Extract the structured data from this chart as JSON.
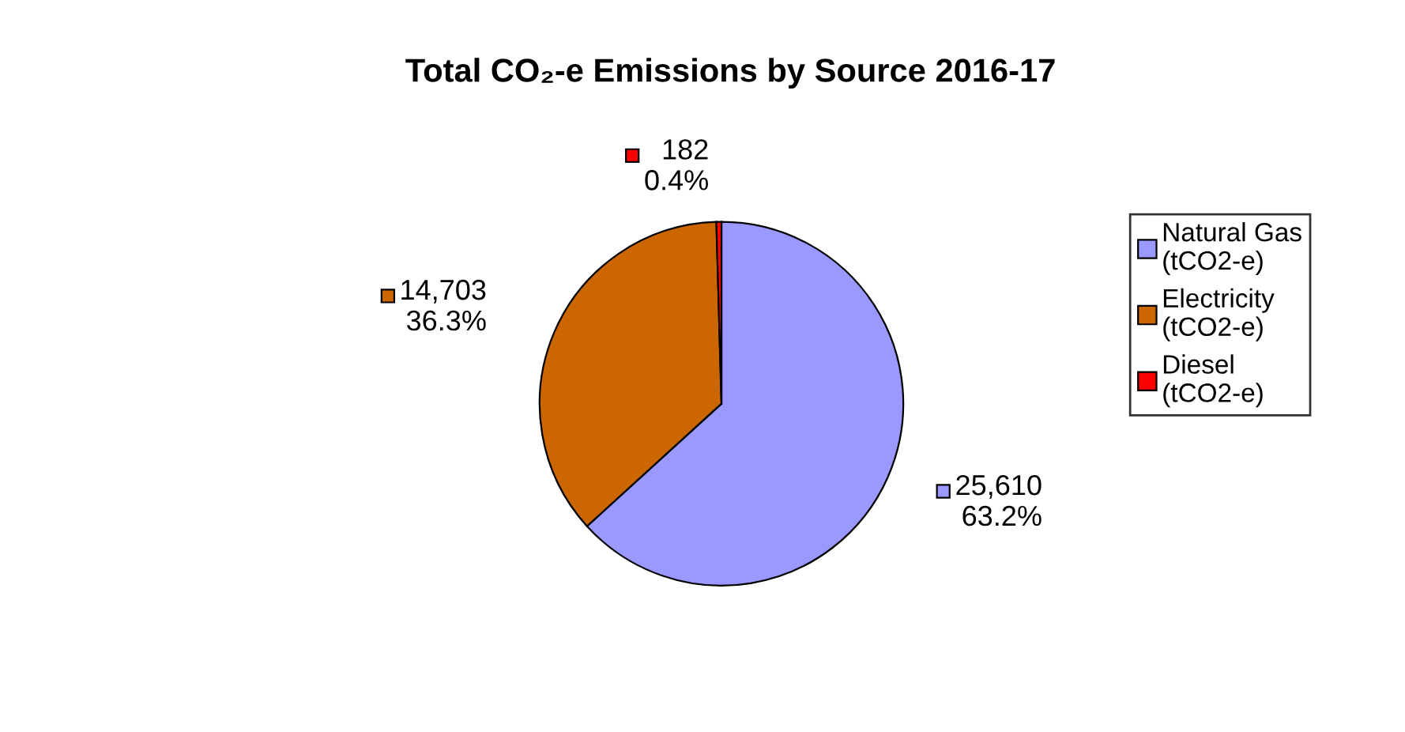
{
  "chart_data": {
    "type": "pie",
    "title": "Total CO₂-e Emissions by Source 2016-17",
    "categories": [
      "Natural Gas\n(tCO2-e)",
      "Electricity\n(tCO2-e)",
      "Diesel\n(tCO2-e)"
    ],
    "values": [
      25610,
      14703,
      182
    ],
    "colors": [
      "#9999ff",
      "#cc6600",
      "#ff0000"
    ],
    "value_labels": [
      "25,610\n63.2%",
      "14,703\n36.3%",
      "182\n0.4%"
    ],
    "legend": "right"
  }
}
